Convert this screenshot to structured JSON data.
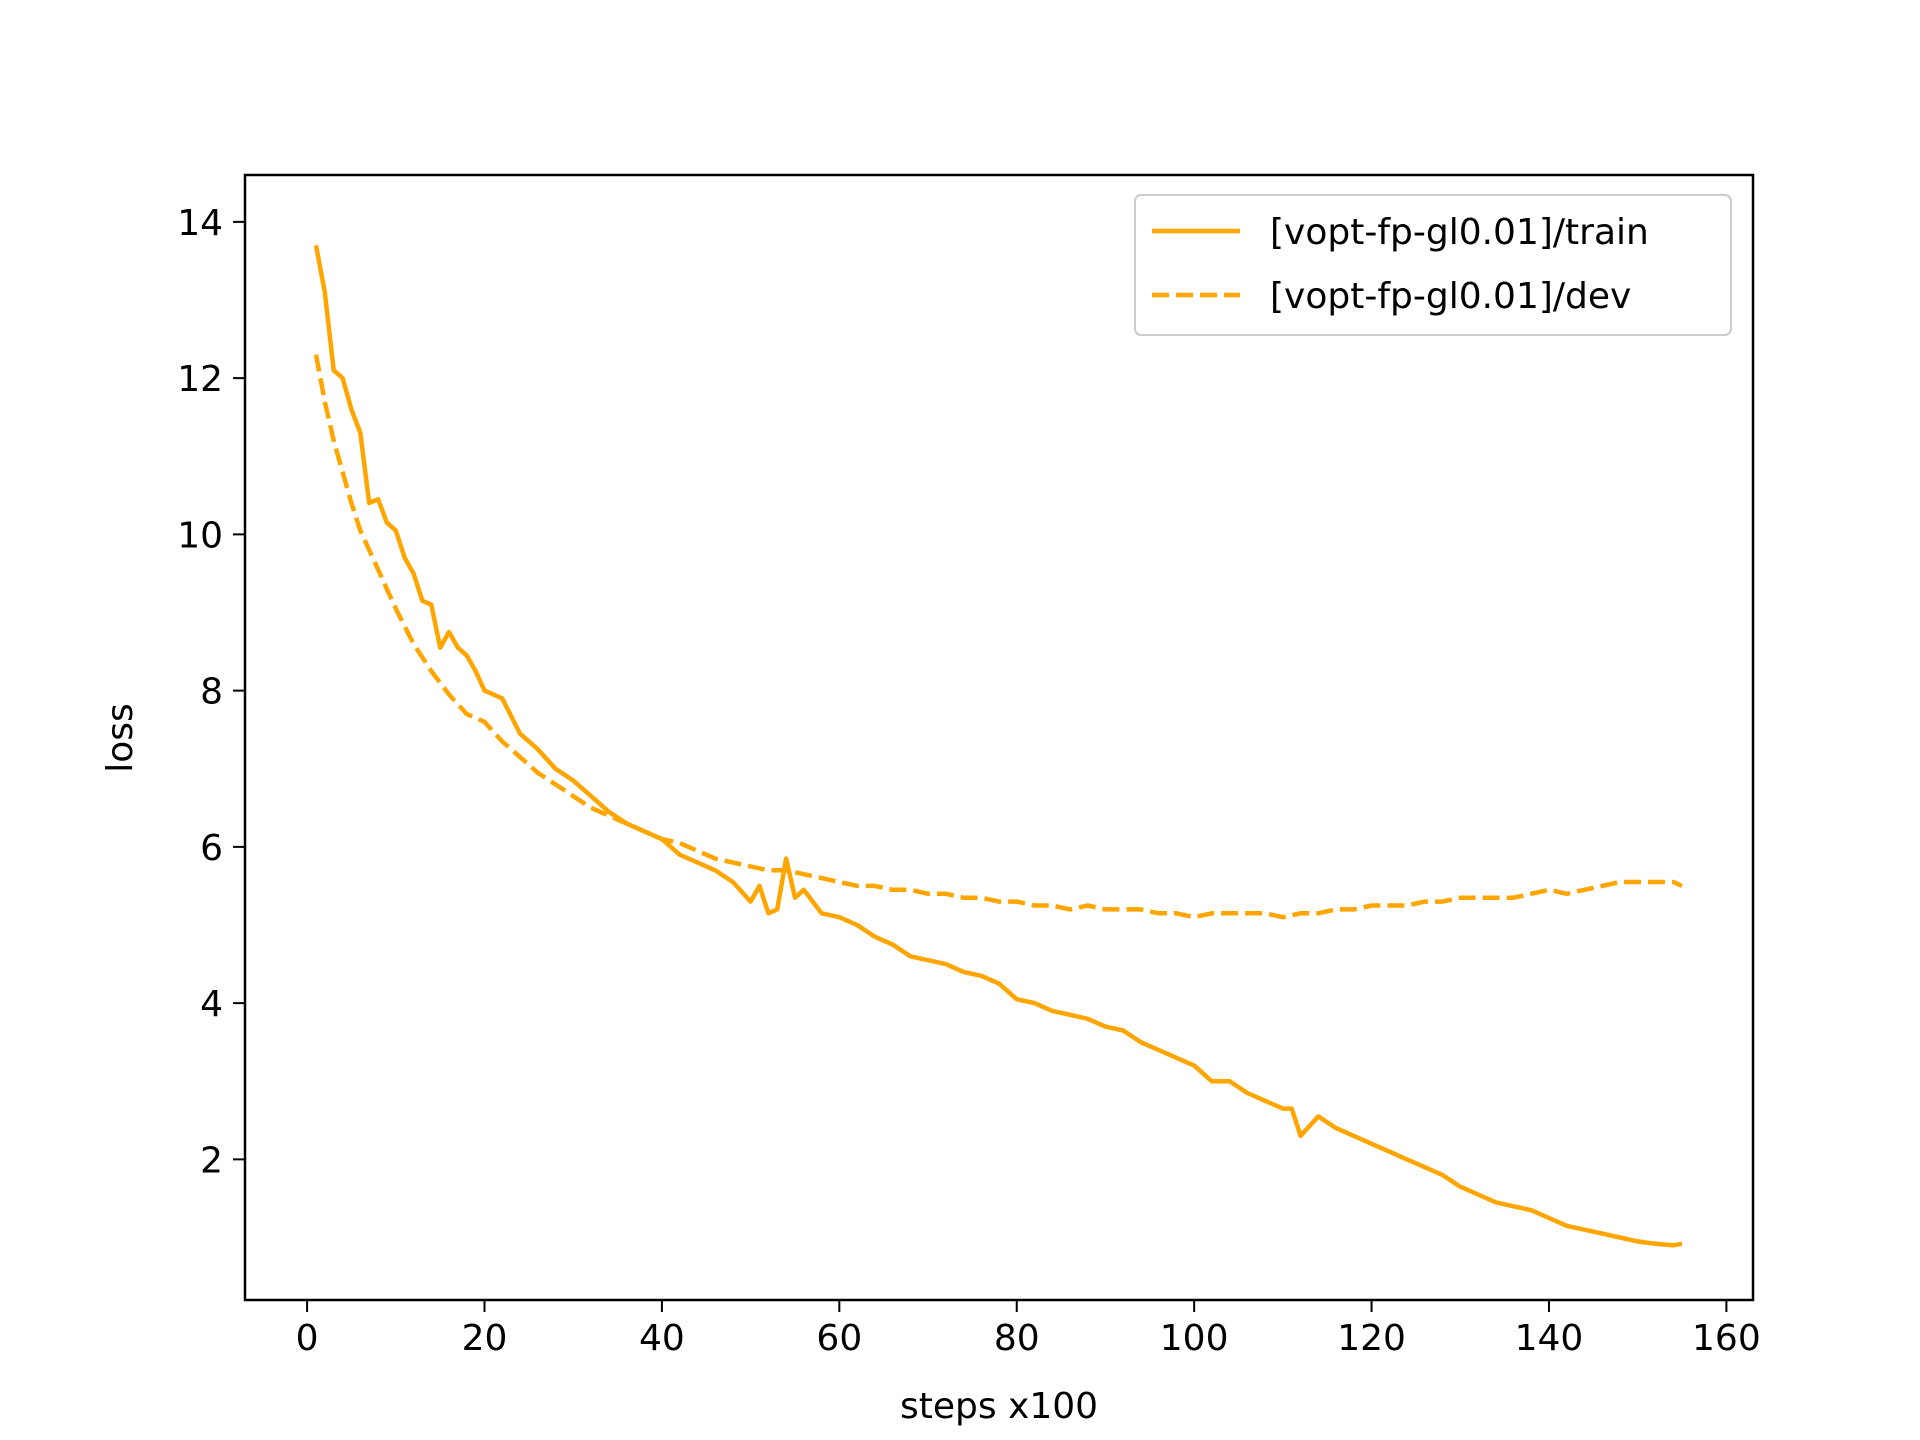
{
  "chart_data": {
    "type": "line",
    "xlabel": "steps x100",
    "ylabel": "loss",
    "xlim": [
      -7,
      163
    ],
    "ylim": [
      0.2,
      14.6
    ],
    "xticks": [
      0,
      20,
      40,
      60,
      80,
      100,
      120,
      140,
      160
    ],
    "yticks": [
      2,
      4,
      6,
      8,
      10,
      12,
      14
    ],
    "grid": false,
    "legend_position": "top-right",
    "line_color": "#ffa500",
    "series": [
      {
        "name": "[vopt-fp-gl0.01]/train",
        "style": "solid",
        "x": [
          1,
          2,
          3,
          4,
          5,
          6,
          7,
          8,
          9,
          10,
          11,
          12,
          13,
          14,
          15,
          16,
          17,
          18,
          19,
          20,
          22,
          24,
          26,
          28,
          30,
          32,
          34,
          36,
          38,
          40,
          42,
          44,
          46,
          48,
          50,
          51,
          52,
          53,
          54,
          55,
          56,
          58,
          60,
          62,
          64,
          66,
          68,
          70,
          72,
          74,
          76,
          78,
          80,
          82,
          84,
          86,
          88,
          90,
          92,
          94,
          96,
          98,
          100,
          102,
          104,
          106,
          108,
          110,
          111,
          112,
          114,
          116,
          118,
          120,
          122,
          124,
          126,
          128,
          130,
          132,
          134,
          136,
          138,
          140,
          142,
          144,
          146,
          148,
          150,
          152,
          154,
          155
        ],
        "y": [
          13.7,
          13.1,
          12.1,
          12.0,
          11.6,
          11.3,
          10.4,
          10.45,
          10.15,
          10.05,
          9.7,
          9.5,
          9.15,
          9.1,
          8.55,
          8.75,
          8.55,
          8.45,
          8.25,
          8.0,
          7.9,
          7.45,
          7.25,
          7.0,
          6.85,
          6.65,
          6.45,
          6.3,
          6.2,
          6.1,
          5.9,
          5.8,
          5.7,
          5.55,
          5.3,
          5.5,
          5.15,
          5.2,
          5.85,
          5.35,
          5.45,
          5.15,
          5.1,
          5.0,
          4.85,
          4.75,
          4.6,
          4.55,
          4.5,
          4.4,
          4.35,
          4.25,
          4.05,
          4.0,
          3.9,
          3.85,
          3.8,
          3.7,
          3.65,
          3.5,
          3.4,
          3.3,
          3.2,
          3.0,
          3.0,
          2.85,
          2.75,
          2.65,
          2.65,
          2.3,
          2.55,
          2.4,
          2.3,
          2.2,
          2.1,
          2.0,
          1.9,
          1.8,
          1.65,
          1.55,
          1.45,
          1.4,
          1.35,
          1.25,
          1.15,
          1.1,
          1.05,
          1.0,
          0.95,
          0.92,
          0.9,
          0.92
        ]
      },
      {
        "name": "[vopt-fp-gl0.01]/dev",
        "style": "dashed",
        "x": [
          1,
          2,
          3,
          4,
          5,
          6,
          7,
          8,
          9,
          10,
          12,
          14,
          16,
          18,
          20,
          22,
          24,
          26,
          28,
          30,
          32,
          34,
          36,
          38,
          40,
          42,
          44,
          46,
          48,
          50,
          52,
          54,
          56,
          58,
          60,
          62,
          64,
          66,
          68,
          70,
          72,
          74,
          76,
          78,
          80,
          82,
          84,
          86,
          88,
          90,
          92,
          94,
          96,
          98,
          100,
          102,
          104,
          106,
          108,
          110,
          112,
          114,
          116,
          118,
          120,
          122,
          124,
          126,
          128,
          130,
          132,
          134,
          136,
          138,
          140,
          142,
          144,
          146,
          148,
          150,
          152,
          154,
          155
        ],
        "y": [
          12.3,
          11.7,
          11.2,
          10.8,
          10.4,
          10.05,
          9.8,
          9.55,
          9.3,
          9.05,
          8.6,
          8.25,
          7.95,
          7.7,
          7.6,
          7.35,
          7.15,
          6.95,
          6.8,
          6.65,
          6.5,
          6.4,
          6.3,
          6.2,
          6.1,
          6.05,
          5.95,
          5.85,
          5.8,
          5.75,
          5.7,
          5.7,
          5.65,
          5.6,
          5.55,
          5.5,
          5.5,
          5.45,
          5.45,
          5.4,
          5.4,
          5.35,
          5.35,
          5.3,
          5.3,
          5.25,
          5.25,
          5.2,
          5.25,
          5.2,
          5.2,
          5.2,
          5.15,
          5.15,
          5.1,
          5.15,
          5.15,
          5.15,
          5.15,
          5.1,
          5.15,
          5.15,
          5.2,
          5.2,
          5.25,
          5.25,
          5.25,
          5.3,
          5.3,
          5.35,
          5.35,
          5.35,
          5.35,
          5.4,
          5.45,
          5.4,
          5.45,
          5.5,
          5.55,
          5.55,
          5.55,
          5.55,
          5.5
        ]
      }
    ]
  }
}
